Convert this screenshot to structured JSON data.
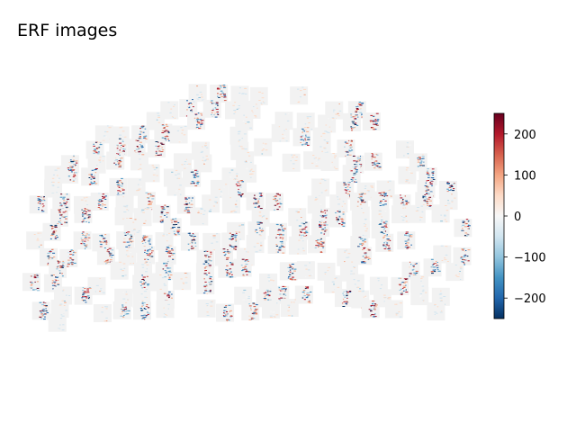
{
  "chart_data": {
    "type": "heatmap",
    "title": "ERF images",
    "subplot_count": 204,
    "colormap": {
      "name": "RdBu_r",
      "range": [
        -250,
        250
      ],
      "stops": [
        "#053061",
        "#2166ac",
        "#4393c3",
        "#92c5de",
        "#d1e5f0",
        "#f7f7f7",
        "#fddbc7",
        "#f4a582",
        "#d6604d",
        "#b2182b",
        "#67001f"
      ]
    },
    "colorbar": {
      "ticks": [
        200,
        100,
        0,
        -100,
        -200
      ],
      "tick_labels": [
        "200",
        "100",
        "0",
        "−100",
        "−200"
      ]
    },
    "xlabel": "",
    "ylabel": ""
  }
}
